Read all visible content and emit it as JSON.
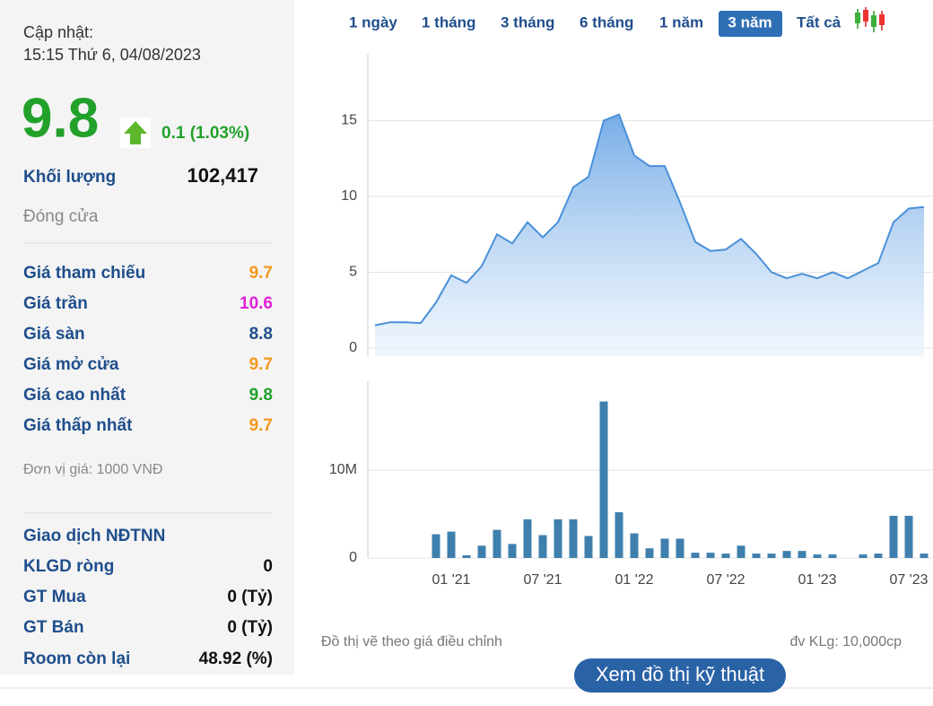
{
  "update": {
    "label": "Cập nhật:",
    "time": "15:15 Thứ 6, 04/08/2023"
  },
  "quote": {
    "price": "9.8",
    "change": "0.1 (1.03%)",
    "volume_label": "Khối lượng",
    "volume": "102,417",
    "status": "Đóng cửa"
  },
  "prices": [
    [
      "Giá tham chiếu",
      "9.7"
    ],
    [
      "Giá trần",
      "10.6"
    ],
    [
      "Giá sàn",
      "8.8"
    ],
    [
      "Giá mở cửa",
      "9.7"
    ],
    [
      "Giá cao nhất",
      "9.8"
    ],
    [
      "Giá thấp nhất",
      "9.7"
    ]
  ],
  "unit": "Đơn vị giá: 1000 VNĐ",
  "foreign": {
    "title": "Giao dịch NĐTNN",
    "rows": [
      [
        "KLGD ròng",
        "0"
      ],
      [
        "GT Mua",
        "0 (Tỷ)"
      ],
      [
        "GT Bán",
        "0 (Tỷ)"
      ],
      [
        "Room còn lại",
        "48.92 (%)"
      ]
    ]
  },
  "tabs": [
    "1 ngày",
    "1 tháng",
    "3 tháng",
    "6 tháng",
    "1 năm",
    "3 năm",
    "Tất cả"
  ],
  "chart_data": [
    {
      "type": "area",
      "color": "#4a90d9",
      "values": [
        1.5,
        1.7,
        1.7,
        1.65,
        3.0,
        4.8,
        4.3,
        5.4,
        7.5,
        6.9,
        8.3,
        7.3,
        8.3,
        10.6,
        11.3,
        15.0,
        15.4,
        12.7,
        12.0,
        12.0,
        9.6,
        7.0,
        6.4,
        6.5,
        7.2,
        6.2,
        5.0,
        4.6,
        4.9,
        4.6,
        5.0,
        4.6,
        5.1,
        5.6,
        8.3,
        9.2,
        9.3
      ],
      "ylim": [
        0,
        19.4
      ],
      "yticks": [
        0,
        5,
        10,
        15
      ],
      "grid": true
    },
    {
      "type": "bar",
      "color": "#3f7fad",
      "categories": [
        null,
        null,
        null,
        null,
        null,
        "01 '21",
        null,
        null,
        null,
        null,
        null,
        "07 '21",
        null,
        null,
        null,
        null,
        null,
        "01 '22",
        null,
        null,
        null,
        null,
        null,
        "07 '22",
        null,
        null,
        null,
        null,
        null,
        "01 '23",
        null,
        null,
        null,
        null,
        null,
        "07 '23",
        null
      ],
      "values": [
        null,
        null,
        null,
        null,
        2700000,
        3000000,
        300000,
        1400000,
        3200000,
        1600000,
        4400000,
        2600000,
        4400000,
        4400000,
        2500000,
        17800000,
        5200000,
        2800000,
        1100000,
        2200000,
        2200000,
        600000,
        600000,
        500000,
        1400000,
        500000,
        500000,
        800000,
        800000,
        400000,
        400000,
        null,
        400000,
        500000,
        4800000,
        4800000,
        500000
      ],
      "ylim": [
        0,
        20100000
      ],
      "yticks": [
        0,
        {
          "value": 10000000,
          "label": "10M"
        }
      ],
      "grid": true
    }
  ],
  "footer": {
    "note": "Đồ thị vẽ theo giá điều chỉnh",
    "unit": "đv KLg: 10,000cp",
    "button": "Xem đồ thị kỹ thuật"
  }
}
